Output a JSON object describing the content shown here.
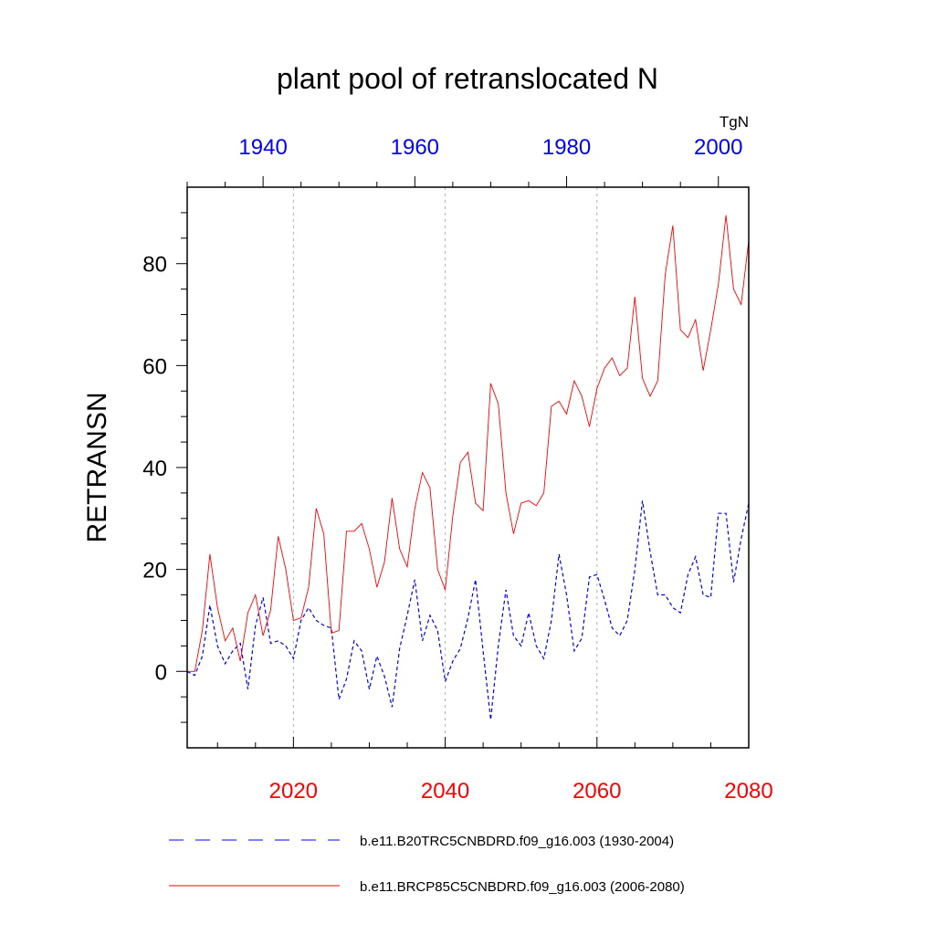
{
  "chart_data": {
    "type": "line",
    "title": "plant pool of retranslocated N",
    "units": "TgN",
    "ylabel": "RETRANSN",
    "ylim": [
      -15,
      95
    ],
    "yticks": [
      0,
      20,
      40,
      60,
      80
    ],
    "x_bottom": {
      "range": [
        2006,
        2080
      ],
      "ticks": [
        2020,
        2040,
        2060,
        2080
      ],
      "color": "#ff0000"
    },
    "x_top": {
      "range": [
        1930,
        2004
      ],
      "ticks": [
        1940,
        1960,
        1980,
        2000
      ],
      "color": "#0000ff"
    },
    "gridlines_x": [
      2020,
      2040,
      2060
    ],
    "series": [
      {
        "name": "b.e11.B20TRC5CNBDRD.f09_g16.003 (1930-2004)",
        "color": "#0000ff",
        "style": "dashed",
        "axis": "top",
        "x_start": 1930,
        "values": [
          0.0,
          -0.8,
          3.0,
          13.0,
          5.0,
          1.5,
          4.0,
          5.5,
          -3.5,
          9.0,
          14.5,
          5.5,
          6.0,
          5.0,
          2.5,
          10.0,
          12.5,
          10.0,
          9.0,
          8.5,
          -5.5,
          -1.5,
          6.0,
          4.0,
          -3.5,
          3.0,
          -1.0,
          -7.0,
          4.5,
          11.0,
          18.0,
          6.0,
          11.0,
          8.0,
          -2.0,
          2.0,
          4.5,
          10.5,
          18.0,
          4.0,
          -9.5,
          5.0,
          16.0,
          7.0,
          5.0,
          11.5,
          5.0,
          2.5,
          10.0,
          23.0,
          15.0,
          4.0,
          6.5,
          18.5,
          19.0,
          14.0,
          8.5,
          7.0,
          10.0,
          20.0,
          33.5,
          23.5,
          15.0,
          15.0,
          12.5,
          11.5,
          19.0,
          22.5,
          15.0,
          14.5,
          31.0,
          31.0,
          17.5,
          26.0,
          33.0
        ]
      },
      {
        "name": "b.e11.BRCP85C5CNBDRD.f09_g16.003 (2006-2080)",
        "color": "#ff0000",
        "style": "solid",
        "axis": "bottom",
        "x_start": 2006,
        "values": [
          0.0,
          0.0,
          8.0,
          23.0,
          12.5,
          6.0,
          8.5,
          2.0,
          11.5,
          15.0,
          7.0,
          12.0,
          26.5,
          20.0,
          10.0,
          10.5,
          16.5,
          32.0,
          27.0,
          7.5,
          8.0,
          27.5,
          27.5,
          29.0,
          24.0,
          16.5,
          21.5,
          34.0,
          24.0,
          20.5,
          32.0,
          39.0,
          36.0,
          20.0,
          16.0,
          30.5,
          41.0,
          43.0,
          33.0,
          31.5,
          56.5,
          52.5,
          35.0,
          27.0,
          33.0,
          33.5,
          32.5,
          35.0,
          52.0,
          53.0,
          50.5,
          57.0,
          54.0,
          48.0,
          55.5,
          59.5,
          61.5,
          58.0,
          59.5,
          73.5,
          57.5,
          54.0,
          57.0,
          78.0,
          87.5,
          67.0,
          65.5,
          69.0,
          59.0,
          67.0,
          76.0,
          89.5,
          75.0,
          72.0,
          84.5
        ]
      }
    ]
  }
}
